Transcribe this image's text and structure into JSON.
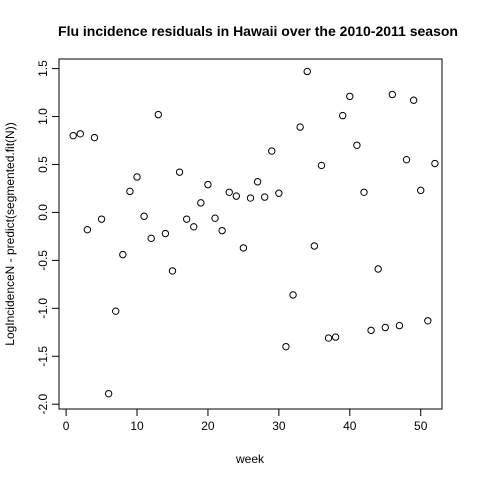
{
  "chart_data": {
    "type": "scatter",
    "title": "Flu incidence residuals in Hawaii over the 2010-2011 season",
    "xlabel": "week",
    "ylabel": "LogIncidenceN - predict(segmented.fit(N))",
    "xlim": [
      -1,
      53
    ],
    "ylim": [
      -2.05,
      1.6
    ],
    "x_ticks": [
      0,
      10,
      20,
      30,
      40,
      50
    ],
    "x_tick_labels": [
      "0",
      "10",
      "20",
      "30",
      "40",
      "50"
    ],
    "y_ticks": [
      -2.0,
      -1.5,
      -1.0,
      -0.5,
      0.0,
      0.5,
      1.0,
      1.5
    ],
    "y_tick_labels": [
      "-2.0",
      "-1.5",
      "-1.0",
      "-0.5",
      "0.0",
      "0.5",
      "1.0",
      "1.5"
    ],
    "grid": false,
    "legend": "none",
    "marker": "open-circle",
    "point_color": "#000000",
    "x": [
      1,
      2,
      3,
      4,
      5,
      6,
      7,
      8,
      9,
      10,
      11,
      12,
      13,
      14,
      15,
      16,
      17,
      18,
      19,
      20,
      21,
      22,
      23,
      24,
      25,
      26,
      27,
      28,
      29,
      30,
      31,
      32,
      33,
      34,
      35,
      36,
      37,
      38,
      39,
      40,
      41,
      42,
      43,
      44,
      45,
      46,
      47,
      48,
      49,
      50,
      51,
      52
    ],
    "y": [
      0.8,
      0.82,
      -0.18,
      0.78,
      -0.07,
      -1.89,
      -1.03,
      -0.44,
      0.22,
      0.37,
      -0.04,
      -0.27,
      1.02,
      -0.22,
      -0.61,
      0.42,
      -0.07,
      -0.15,
      0.1,
      0.29,
      -0.06,
      -0.19,
      0.21,
      0.17,
      -0.37,
      0.15,
      0.32,
      0.16,
      0.64,
      0.2,
      -1.4,
      -0.86,
      0.89,
      1.47,
      -0.35,
      0.49,
      -1.31,
      -1.3,
      1.01,
      1.21,
      0.7,
      0.21,
      -1.23,
      -0.59,
      -1.2,
      1.23,
      -1.18,
      0.55,
      1.17,
      0.23,
      -1.13,
      0.51
    ]
  }
}
